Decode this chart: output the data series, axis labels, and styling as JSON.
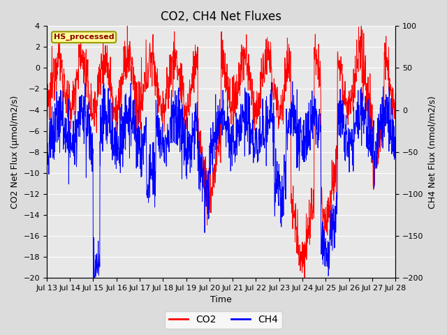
{
  "title": "CO2, CH4 Net Fluxes",
  "xlabel": "Time",
  "ylabel_left": "CO2 Net Flux (μmol/m2/s)",
  "ylabel_right": "CH4 Net Flux (nmol/m2/s)",
  "annotation": "HS_processed",
  "ylim_left": [
    -20,
    4
  ],
  "ylim_right": [
    -200,
    100
  ],
  "yticks_left": [
    -20,
    -18,
    -16,
    -14,
    -12,
    -10,
    -8,
    -6,
    -4,
    -2,
    0,
    2,
    4
  ],
  "yticks_right": [
    -200,
    -150,
    -100,
    -50,
    0,
    50,
    100
  ],
  "x_labels": [
    "Jul 13",
    "Jul 14",
    "Jul 15",
    "Jul 16",
    "Jul 17",
    "Jul 18",
    "Jul 19",
    "Jul 20",
    "Jul 21",
    "Jul 22",
    "Jul 23",
    "Jul 24",
    "Jul 25",
    "Jul 26",
    "Jul 27",
    "Jul 28"
  ],
  "co2_color": "#FF0000",
  "ch4_color": "#0000FF",
  "legend_co2": "CO2",
  "legend_ch4": "CH4",
  "plot_bg_color": "#E8E8E8",
  "grid_color": "#FFFFFF",
  "annotation_bg": "#FFFF99",
  "annotation_border": "#999900",
  "title_fontsize": 12,
  "axis_label_fontsize": 9,
  "tick_fontsize": 8,
  "legend_fontsize": 10,
  "n_days": 15,
  "pts_per_day": 96,
  "seed": 12345
}
